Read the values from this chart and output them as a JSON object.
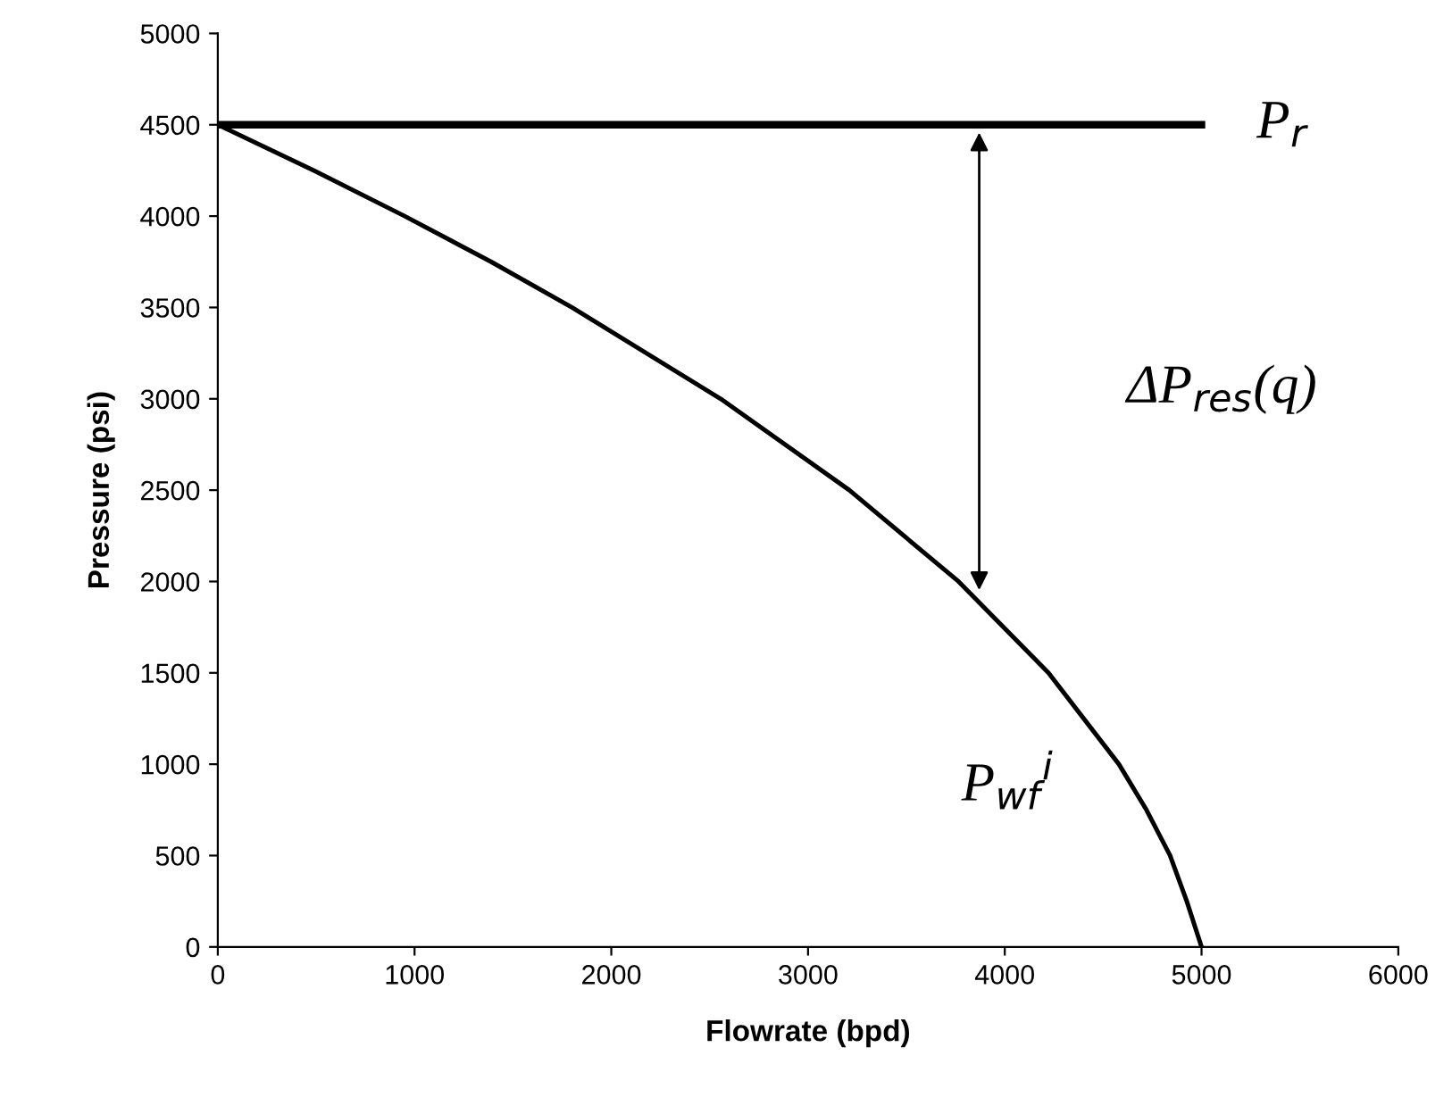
{
  "chart_data": {
    "type": "line",
    "xlabel": "Flowrate (bpd)",
    "ylabel": "Pressure (psi)",
    "series": [
      {
        "color": "#000000",
        "x": [
          0,
          5000
        ],
        "values": [
          4500,
          4500
        ]
      },
      {
        "color": "#000000",
        "x": [
          0,
          488,
          950,
          1389,
          1800,
          2556,
          3210,
          3765,
          4222,
          4580,
          4720,
          4840,
          4925,
          5000
        ],
        "values": [
          4500,
          4250,
          4000,
          3750,
          3500,
          3000,
          2500,
          2000,
          1500,
          1000,
          750,
          500,
          250,
          0
        ]
      }
    ],
    "annotations": [
      "P$_{r}$",
      "ΔP$_{res}$(q)",
      "P$_{wf}$$^{i}$"
    ],
    "xlim": [
      0,
      6000
    ],
    "ylim": [
      0,
      5000
    ],
    "xticks": [
      0,
      1000,
      2000,
      3000,
      4000,
      5000,
      6000
    ],
    "yticks": [
      0,
      500,
      1000,
      1500,
      2000,
      2500,
      3000,
      3500,
      4000,
      4500,
      5000
    ],
    "grid": false,
    "legend": false
  }
}
